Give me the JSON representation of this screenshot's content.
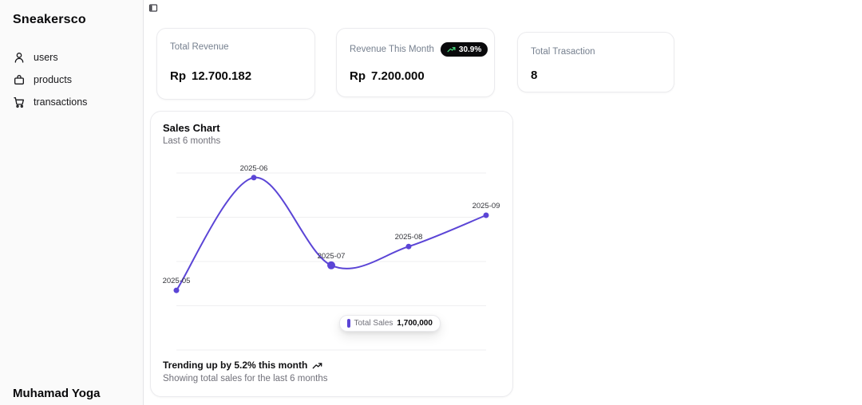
{
  "app": {
    "brand": "Sneakersco",
    "user": "Muhamad Yoga"
  },
  "sidebar": {
    "items": [
      {
        "icon": "user-icon",
        "label": "users"
      },
      {
        "icon": "shopping-bag-icon",
        "label": "products"
      },
      {
        "icon": "shopping-cart-icon",
        "label": "transactions"
      }
    ]
  },
  "topbar": {
    "sidebar_toggle_icon": "panel-left-icon"
  },
  "stats": [
    {
      "label": "Total Revenue",
      "prefix": "Rp",
      "value": "12.700.182"
    },
    {
      "label": "Revenue This Month",
      "prefix": "Rp",
      "value": "7.200.000",
      "badge": {
        "icon": "trending-up-icon",
        "text": "30.9%"
      }
    },
    {
      "label": "Total Trasaction",
      "prefix": "",
      "value": "8"
    }
  ],
  "sales_card": {
    "title": "Sales Chart",
    "subtitle": "Last 6 months",
    "tooltip": {
      "series_label": "Total Sales",
      "value": "1,700,000"
    },
    "footer_trend": "Trending up by 5.2% this month",
    "footer_trend_icon": "trending-up-icon",
    "footer_subtitle": "Showing total sales for the last 6 months"
  },
  "chart_data": {
    "type": "line",
    "title": "Sales Chart",
    "x": [
      "2025-05",
      "2025-06",
      "2025-07",
      "2025-08",
      "2025-09"
    ],
    "series": [
      {
        "name": "Total Sales",
        "values": [
          1500000,
          2400000,
          1700000,
          1850000,
          2100000
        ]
      }
    ],
    "highlighted_point": {
      "x": "2025-07",
      "value": 1700000,
      "tooltip_label": "Total Sales",
      "tooltip_value": "1,700,000"
    },
    "ylim": [
      1450000,
      2450000
    ],
    "curve": "natural",
    "grid": "horizontal",
    "legend": "none",
    "line_color": "#5b45d6",
    "grid_color": "#efeff1",
    "point_label_color": "#33343a"
  },
  "colors": {
    "accent": "#5b45d6",
    "badge_bg": "#0a0a0c",
    "badge_icon_green": "#4ade80",
    "sidebar_bg": "#fafafa",
    "border": "#e4e4e7",
    "muted_text": "#71717a"
  }
}
